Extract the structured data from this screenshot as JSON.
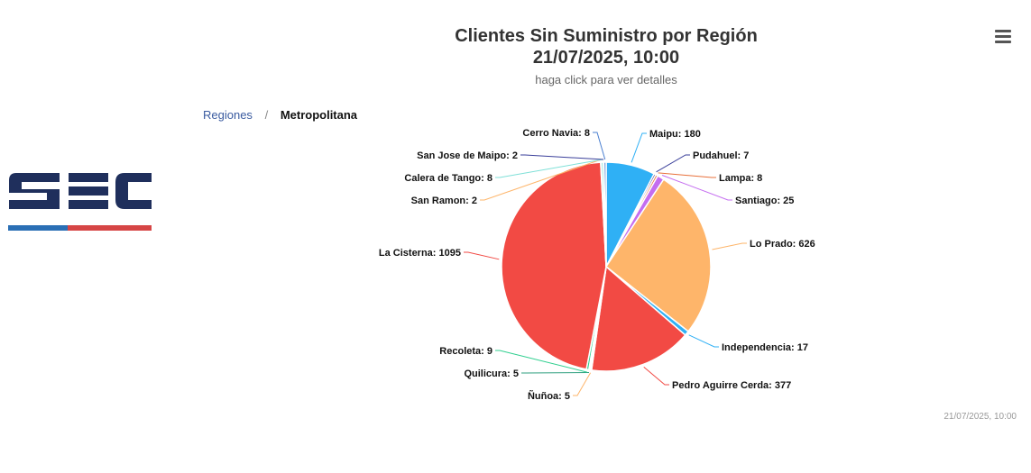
{
  "header": {
    "title_line1": "Clientes Sin Suministro por Región",
    "title_line2": "21/07/2025, 10:00",
    "subtitle": "haga click para ver detalles"
  },
  "menu": {
    "icon": "hamburger-icon"
  },
  "breadcrumb": {
    "parent": "Regiones",
    "separator": "/",
    "current": "Metropolitana"
  },
  "logo": {
    "text": "SEC",
    "colors": {
      "navy": "#1f2f5c",
      "blue": "#2a6fb5",
      "red": "#d64545"
    }
  },
  "credits": "21/07/2025, 10:00",
  "chart_data": {
    "type": "pie",
    "title": "Clientes Sin Suministro por Región 21/07/2025, 10:00",
    "subtitle": "haga click para ver detalles",
    "slices": [
      {
        "name": "Maipu",
        "value": 180,
        "color": "#2fb0f5"
      },
      {
        "name": "Pudahuel",
        "value": 7,
        "color": "#3a3f9a"
      },
      {
        "name": "Lampa",
        "value": 8,
        "color": "#e8703a"
      },
      {
        "name": "Santiago",
        "value": 25,
        "color": "#c46df0"
      },
      {
        "name": "Lo Prado",
        "value": 626,
        "color": "#feb56a"
      },
      {
        "name": "Independencia",
        "value": 17,
        "color": "#2fb0f5"
      },
      {
        "name": "Pedro Aguirre Cerda",
        "value": 377,
        "color": "#f24a44"
      },
      {
        "name": "Ñuñoa",
        "value": 5,
        "color": "#feb56a"
      },
      {
        "name": "Quilicura",
        "value": 5,
        "color": "#2f9f7f"
      },
      {
        "name": "Recoleta",
        "value": 9,
        "color": "#2fcf8f"
      },
      {
        "name": "La Cisterna",
        "value": 1095,
        "color": "#f24a44"
      },
      {
        "name": "San Ramon",
        "value": 2,
        "color": "#feb56a"
      },
      {
        "name": "Calera de Tango",
        "value": 8,
        "color": "#7fe0d8"
      },
      {
        "name": "San Jose de Maipo",
        "value": 2,
        "color": "#3a3f9a"
      },
      {
        "name": "Cerro Navia",
        "value": 8,
        "color": "#4a7fd0"
      }
    ]
  }
}
